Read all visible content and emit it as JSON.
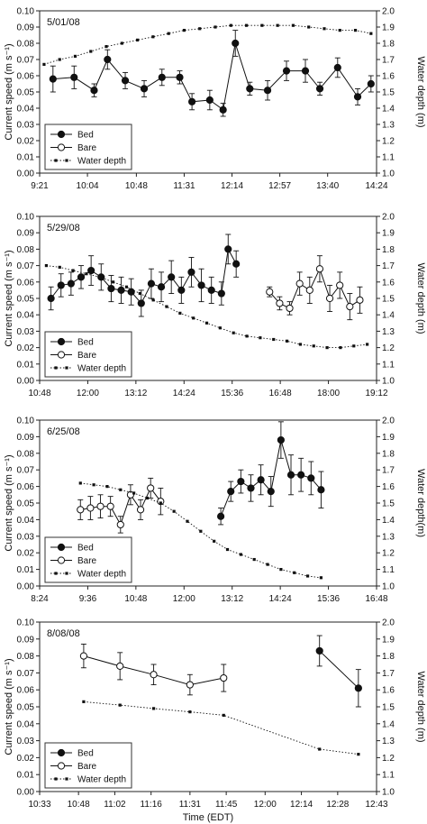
{
  "chart_data": [
    {
      "type": "line",
      "title": "5/01/08",
      "ylabel": "Current speed (m s⁻¹)",
      "y2label": "Water depth (m)",
      "xlabel": "",
      "xlim": [
        "9:21",
        "14:24"
      ],
      "ylim": [
        0,
        0.1
      ],
      "y2lim": [
        1.0,
        2.0
      ],
      "xticks": [
        "9:21",
        "10:04",
        "10:48",
        "11:31",
        "12:14",
        "12:57",
        "13:40",
        "14:24"
      ],
      "yticks": [
        "0.00",
        "0.01",
        "0.02",
        "0.03",
        "0.04",
        "0.05",
        "0.06",
        "0.07",
        "0.08",
        "0.09",
        "0.10"
      ],
      "y2ticks": [
        "1.0",
        "1.1",
        "1.2",
        "1.3",
        "1.4",
        "1.5",
        "1.6",
        "1.7",
        "1.8",
        "1.9",
        "2.0"
      ],
      "legend": {
        "position": "bottom-left",
        "entries": [
          "Bed",
          "Bare",
          "Water depth"
        ]
      },
      "series": [
        {
          "name": "Bed",
          "axis": "left",
          "marker": "filled-circle",
          "line": "solid",
          "x": [
            "9:33",
            "9:52",
            "10:10",
            "10:22",
            "10:38",
            "10:55",
            "11:11",
            "11:27",
            "11:38",
            "11:54",
            "12:06",
            "12:17",
            "12:30",
            "12:46",
            "13:03",
            "13:20",
            "13:33",
            "13:49",
            "14:07",
            "14:19"
          ],
          "y": [
            0.058,
            0.059,
            0.051,
            0.07,
            0.057,
            0.052,
            0.059,
            0.059,
            0.044,
            0.045,
            0.039,
            0.08,
            0.052,
            0.051,
            0.063,
            0.063,
            0.052,
            0.065,
            0.047,
            0.055
          ],
          "err": [
            0.008,
            0.007,
            0.004,
            0.006,
            0.005,
            0.005,
            0.005,
            0.004,
            0.005,
            0.006,
            0.004,
            0.008,
            0.004,
            0.006,
            0.006,
            0.007,
            0.004,
            0.006,
            0.005,
            0.005
          ]
        },
        {
          "name": "Water depth",
          "axis": "right",
          "marker": "small-square",
          "line": "dotted",
          "x": [
            "9:25",
            "9:39",
            "9:53",
            "10:07",
            "10:21",
            "10:35",
            "10:49",
            "11:03",
            "11:17",
            "11:31",
            "11:45",
            "11:59",
            "12:13",
            "12:27",
            "12:41",
            "12:55",
            "13:09",
            "13:23",
            "13:37",
            "13:51",
            "14:05",
            "14:19"
          ],
          "y": [
            1.67,
            1.7,
            1.72,
            1.75,
            1.78,
            1.8,
            1.82,
            1.84,
            1.86,
            1.88,
            1.89,
            1.9,
            1.91,
            1.91,
            1.91,
            1.91,
            1.91,
            1.9,
            1.89,
            1.88,
            1.88,
            1.86
          ]
        }
      ]
    },
    {
      "type": "line",
      "title": "5/29/08",
      "ylabel": "Current speed (m s⁻¹)",
      "y2label": "Water depth (m)",
      "xlabel": "",
      "xlim": [
        "10:48",
        "19:12"
      ],
      "ylim": [
        0,
        0.1
      ],
      "y2lim": [
        1.0,
        2.0
      ],
      "xticks": [
        "10:48",
        "12:00",
        "13:12",
        "14:24",
        "15:36",
        "16:48",
        "18:00",
        "19:12"
      ],
      "yticks": [
        "0.00",
        "0.01",
        "0.02",
        "0.03",
        "0.04",
        "0.05",
        "0.06",
        "0.07",
        "0.08",
        "0.09",
        "0.10"
      ],
      "y2ticks": [
        "1.0",
        "1.1",
        "1.2",
        "1.3",
        "1.4",
        "1.5",
        "1.6",
        "1.7",
        "1.8",
        "1.9",
        "2.0"
      ],
      "legend": {
        "position": "bottom-left",
        "entries": [
          "Bed",
          "Bare",
          "Water depth"
        ]
      },
      "series": [
        {
          "name": "Bed",
          "axis": "left",
          "marker": "filled-circle",
          "line": "solid",
          "x": [
            "11:05",
            "11:20",
            "11:35",
            "11:50",
            "12:05",
            "12:20",
            "12:35",
            "12:50",
            "13:05",
            "13:20",
            "13:35",
            "13:50",
            "14:05",
            "14:20",
            "14:35",
            "14:50",
            "15:05",
            "15:20",
            "15:30",
            "15:42"
          ],
          "y": [
            0.05,
            0.058,
            0.059,
            0.063,
            0.067,
            0.063,
            0.056,
            0.055,
            0.054,
            0.047,
            0.059,
            0.057,
            0.063,
            0.055,
            0.066,
            0.058,
            0.055,
            0.053,
            0.08,
            0.071
          ],
          "err": [
            0.007,
            0.007,
            0.007,
            0.007,
            0.009,
            0.008,
            0.008,
            0.008,
            0.008,
            0.008,
            0.009,
            0.009,
            0.01,
            0.008,
            0.009,
            0.01,
            0.008,
            0.007,
            0.009,
            0.008
          ]
        },
        {
          "name": "Bare",
          "axis": "left",
          "marker": "open-circle",
          "line": "solid",
          "x": [
            "16:32",
            "16:47",
            "17:02",
            "17:17",
            "17:32",
            "17:47",
            "18:02",
            "18:17",
            "18:32",
            "18:47"
          ],
          "y": [
            0.054,
            0.047,
            0.044,
            0.059,
            0.055,
            0.068,
            0.05,
            0.058,
            0.045,
            0.049
          ],
          "err": [
            0.003,
            0.004,
            0.004,
            0.007,
            0.008,
            0.008,
            0.008,
            0.008,
            0.008,
            0.008
          ]
        },
        {
          "name": "Water depth",
          "axis": "right",
          "marker": "small-square",
          "line": "dotted",
          "x": [
            "10:58",
            "11:18",
            "11:38",
            "11:58",
            "12:18",
            "12:38",
            "12:58",
            "13:18",
            "13:38",
            "13:58",
            "14:18",
            "14:38",
            "14:58",
            "15:18",
            "15:38",
            "15:58",
            "16:18",
            "16:38",
            "16:58",
            "17:18",
            "17:38",
            "17:58",
            "18:18",
            "18:38",
            "18:58"
          ],
          "y": [
            1.7,
            1.69,
            1.67,
            1.65,
            1.63,
            1.6,
            1.57,
            1.53,
            1.49,
            1.45,
            1.41,
            1.38,
            1.35,
            1.32,
            1.29,
            1.27,
            1.26,
            1.25,
            1.24,
            1.22,
            1.21,
            1.2,
            1.2,
            1.21,
            1.22
          ]
        }
      ]
    },
    {
      "type": "line",
      "title": "6/25/08",
      "ylabel": "Current speed (m s⁻¹)",
      "y2label": "Water depth(m)",
      "xlabel": "",
      "xlim": [
        "8:24",
        "16:48"
      ],
      "ylim": [
        0,
        0.1
      ],
      "y2lim": [
        1.0,
        2.0
      ],
      "xticks": [
        "8:24",
        "9:36",
        "10:48",
        "12:00",
        "13:12",
        "14:24",
        "15:36",
        "16:48"
      ],
      "yticks": [
        "0.00",
        "0.01",
        "0.02",
        "0.03",
        "0.04",
        "0.05",
        "0.06",
        "0.07",
        "0.08",
        "0.09",
        "0.10"
      ],
      "y2ticks": [
        "1.0",
        "1.1",
        "1.2",
        "1.3",
        "1.4",
        "1.5",
        "1.6",
        "1.7",
        "1.8",
        "1.9",
        "2.0"
      ],
      "legend": {
        "position": "bottom-left",
        "entries": [
          "Bed",
          "Bare",
          "Water depth"
        ]
      },
      "series": [
        {
          "name": "Bed",
          "axis": "left",
          "marker": "filled-circle",
          "line": "solid",
          "x": [
            "12:55",
            "13:10",
            "13:25",
            "13:40",
            "13:55",
            "14:10",
            "14:25",
            "14:40",
            "14:55",
            "15:10",
            "15:25"
          ],
          "y": [
            0.042,
            0.057,
            0.063,
            0.059,
            0.064,
            0.057,
            0.088,
            0.067,
            0.067,
            0.065,
            0.058
          ],
          "err": [
            0.005,
            0.006,
            0.007,
            0.008,
            0.009,
            0.009,
            0.011,
            0.012,
            0.01,
            0.01,
            0.011
          ]
        },
        {
          "name": "Bare",
          "axis": "left",
          "marker": "open-circle",
          "line": "solid",
          "x": [
            "9:25",
            "9:40",
            "9:55",
            "10:10",
            "10:25",
            "10:40",
            "10:55",
            "11:10",
            "11:25"
          ],
          "y": [
            0.046,
            0.047,
            0.048,
            0.048,
            0.037,
            0.055,
            0.046,
            0.059,
            0.051
          ],
          "err": [
            0.006,
            0.007,
            0.007,
            0.006,
            0.005,
            0.006,
            0.006,
            0.006,
            0.008
          ]
        },
        {
          "name": "Water depth",
          "axis": "right",
          "marker": "small-square",
          "line": "dotted",
          "x": [
            "9:25",
            "9:45",
            "10:05",
            "10:25",
            "10:45",
            "11:05",
            "11:25",
            "11:45",
            "12:05",
            "12:25",
            "12:45",
            "13:05",
            "13:25",
            "13:45",
            "14:05",
            "14:25",
            "14:45",
            "15:05",
            "15:25"
          ],
          "y": [
            1.62,
            1.61,
            1.6,
            1.58,
            1.56,
            1.53,
            1.5,
            1.45,
            1.39,
            1.33,
            1.27,
            1.22,
            1.19,
            1.16,
            1.13,
            1.1,
            1.08,
            1.06,
            1.05
          ]
        }
      ]
    },
    {
      "type": "line",
      "title": "8/08/08",
      "ylabel": "Current speed (m s⁻¹)",
      "y2label": "Water depth (m)",
      "xlabel": "Time (EDT)",
      "xlim": [
        "10:33",
        "12:43"
      ],
      "ylim": [
        0,
        0.1
      ],
      "y2lim": [
        1.0,
        2.0
      ],
      "xticks": [
        "10:33",
        "10:48",
        "11:02",
        "11:16",
        "11:31",
        "11:45",
        "12:00",
        "12:14",
        "12:28",
        "12:43"
      ],
      "yticks": [
        "0.00",
        "0.01",
        "0.02",
        "0.03",
        "0.04",
        "0.05",
        "0.06",
        "0.07",
        "0.08",
        "0.09",
        "0.10"
      ],
      "y2ticks": [
        "1.0",
        "1.1",
        "1.2",
        "1.3",
        "1.4",
        "1.5",
        "1.6",
        "1.7",
        "1.8",
        "1.9",
        "2.0"
      ],
      "legend": {
        "position": "bottom-left",
        "entries": [
          "Bed",
          "Bare",
          "Water depth"
        ]
      },
      "series": [
        {
          "name": "Bed",
          "axis": "left",
          "marker": "filled-circle",
          "line": "solid",
          "x": [
            "12:21",
            "12:36"
          ],
          "y": [
            0.083,
            0.061
          ],
          "err": [
            0.009,
            0.011
          ]
        },
        {
          "name": "Bare",
          "axis": "left",
          "marker": "open-circle",
          "line": "solid",
          "x": [
            "10:50",
            "11:04",
            "11:17",
            "11:31",
            "11:44"
          ],
          "y": [
            0.08,
            0.074,
            0.069,
            0.063,
            0.067
          ],
          "err": [
            0.007,
            0.008,
            0.006,
            0.006,
            0.008
          ]
        },
        {
          "name": "Water depth",
          "axis": "right",
          "marker": "small-square",
          "line": "dotted",
          "x": [
            "10:50",
            "11:04",
            "11:17",
            "11:31",
            "11:44",
            "12:21",
            "12:36"
          ],
          "y": [
            1.53,
            1.51,
            1.49,
            1.47,
            1.45,
            1.25,
            1.22
          ]
        }
      ]
    }
  ]
}
